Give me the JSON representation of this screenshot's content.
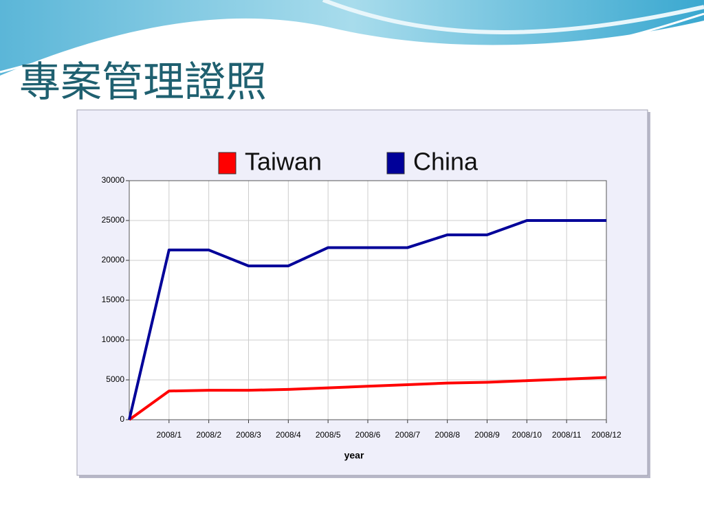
{
  "title": "專案管理證照",
  "chart_data": {
    "type": "line",
    "categories": [
      null,
      "2008/1",
      "2008/2",
      "2008/3",
      "2008/4",
      "2008/5",
      "2008/6",
      "2008/7",
      "2008/8",
      "2008/9",
      "2008/10",
      "2008/11",
      "2008/12"
    ],
    "series": [
      {
        "name": "Taiwan",
        "color": "#ff0000",
        "values": [
          0,
          3600,
          3700,
          3700,
          3800,
          4000,
          4200,
          4400,
          4600,
          4700,
          4900,
          5100,
          5300
        ]
      },
      {
        "name": "China",
        "color": "#000099",
        "values": [
          0,
          21300,
          21300,
          19300,
          19300,
          21600,
          21600,
          21600,
          23200,
          23200,
          25000,
          25000,
          25000
        ]
      }
    ],
    "x_label": "year",
    "ylim": [
      0,
      30000
    ],
    "yticks": [
      0,
      5000,
      10000,
      15000,
      20000,
      25000,
      30000
    ],
    "grid": true,
    "legend": "top"
  }
}
